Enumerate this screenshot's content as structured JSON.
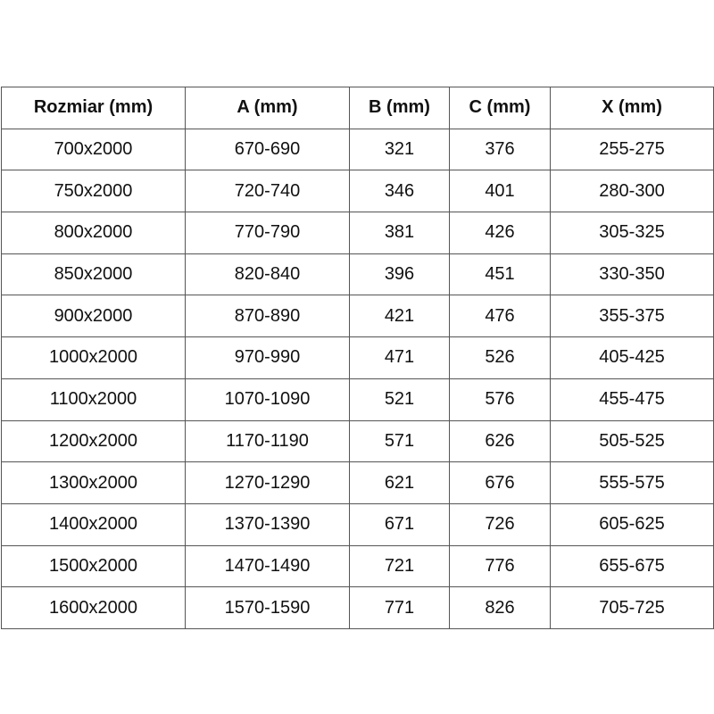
{
  "table": {
    "headers": [
      "Rozmiar (mm)",
      "A (mm)",
      "B (mm)",
      "C (mm)",
      "X (mm)"
    ],
    "rows": [
      [
        "700x2000",
        "670-690",
        "321",
        "376",
        "255-275"
      ],
      [
        "750x2000",
        "720-740",
        "346",
        "401",
        "280-300"
      ],
      [
        "800x2000",
        "770-790",
        "381",
        "426",
        "305-325"
      ],
      [
        "850x2000",
        "820-840",
        "396",
        "451",
        "330-350"
      ],
      [
        "900x2000",
        "870-890",
        "421",
        "476",
        "355-375"
      ],
      [
        "1000x2000",
        "970-990",
        "471",
        "526",
        "405-425"
      ],
      [
        "1100x2000",
        "1070-1090",
        "521",
        "576",
        "455-475"
      ],
      [
        "1200x2000",
        "1170-1190",
        "571",
        "626",
        "505-525"
      ],
      [
        "1300x2000",
        "1270-1290",
        "621",
        "676",
        "555-575"
      ],
      [
        "1400x2000",
        "1370-1390",
        "671",
        "726",
        "605-625"
      ],
      [
        "1500x2000",
        "1470-1490",
        "721",
        "776",
        "655-675"
      ],
      [
        "1600x2000",
        "1570-1590",
        "771",
        "826",
        "705-725"
      ]
    ]
  }
}
